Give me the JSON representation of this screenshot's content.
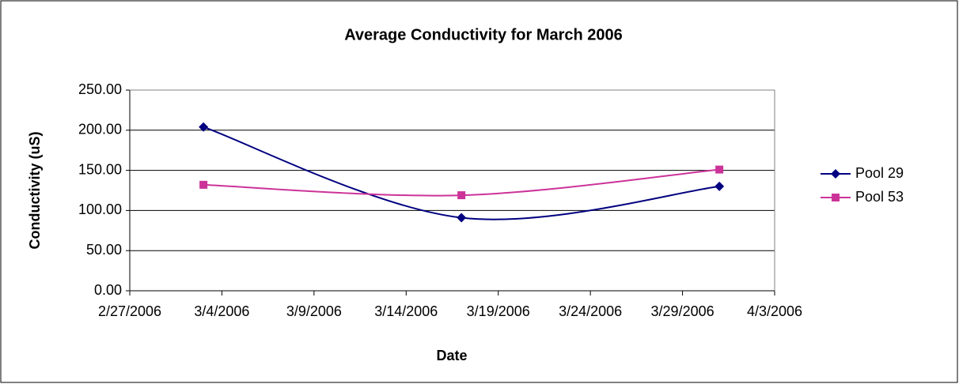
{
  "chart_data": {
    "type": "line",
    "title": "Average Conductivity for March 2006",
    "x_label": "Date",
    "y_label": "Conductivity (uS)",
    "x": [
      "2006-03-03",
      "2006-03-17",
      "2006-03-31"
    ],
    "series": [
      {
        "name": "Pool 29",
        "color": "#000080",
        "marker": "diamond",
        "values": [
          204,
          91,
          130
        ]
      },
      {
        "name": "Pool 53",
        "color": "#cc3399",
        "marker": "square",
        "values": [
          132,
          119,
          151
        ]
      }
    ],
    "xlim": [
      "2006-02-27",
      "2006-04-03"
    ],
    "xticks": [
      {
        "value": "2006-02-27",
        "label": "2/27/2006"
      },
      {
        "value": "2006-03-04",
        "label": "3/4/2006"
      },
      {
        "value": "2006-03-09",
        "label": "3/9/2006"
      },
      {
        "value": "2006-03-14",
        "label": "3/14/2006"
      },
      {
        "value": "2006-03-19",
        "label": "3/19/2006"
      },
      {
        "value": "2006-03-24",
        "label": "3/24/2006"
      },
      {
        "value": "2006-03-29",
        "label": "3/29/2006"
      },
      {
        "value": "2006-04-03",
        "label": "4/3/2006"
      }
    ],
    "ylim": [
      0,
      250
    ],
    "yticks": [
      {
        "value": 0,
        "label": "0.00"
      },
      {
        "value": 50,
        "label": "50.00"
      },
      {
        "value": 100,
        "label": "100.00"
      },
      {
        "value": 150,
        "label": "150.00"
      },
      {
        "value": 200,
        "label": "200.00"
      },
      {
        "value": 250,
        "label": "250.00"
      }
    ],
    "grid": true,
    "smooth": true,
    "legend": "right"
  }
}
